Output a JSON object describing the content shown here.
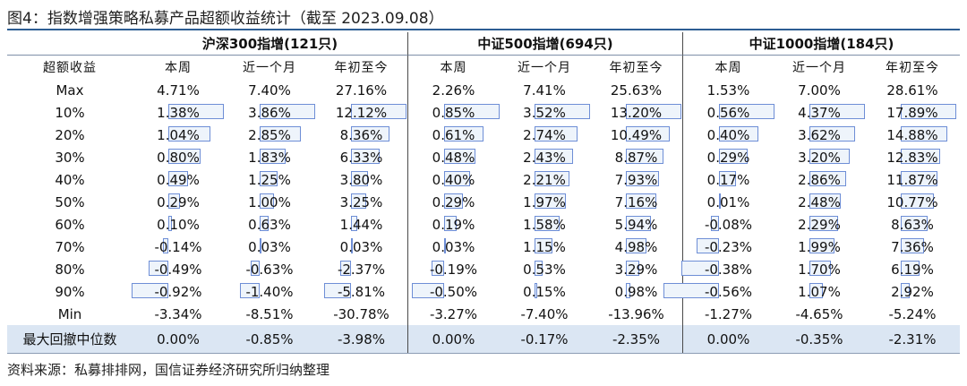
{
  "title": "图4：指数增强策略私募产品超额收益统计（截至 2023.09.08）",
  "groups": [
    {
      "label": "沪深300指增(121只)"
    },
    {
      "label": "中证500指增(694只)"
    },
    {
      "label": "中证1000指增(184只)"
    }
  ],
  "row_header": "超额收益",
  "periods": [
    "本周",
    "近一个月",
    "年初至今"
  ],
  "bar_color": "#6e8ed6",
  "rows": [
    {
      "label": "Max",
      "values": [
        "4.71%",
        "7.40%",
        "27.16%",
        "2.26%",
        "7.41%",
        "25.63%",
        "1.53%",
        "7.00%",
        "28.61%"
      ]
    },
    {
      "label": "10%",
      "values": [
        "1.38%",
        "3.86%",
        "12.12%",
        "0.85%",
        "3.52%",
        "13.20%",
        "0.56%",
        "4.37%",
        "17.89%"
      ]
    },
    {
      "label": "20%",
      "values": [
        "1.04%",
        "2.85%",
        "8.36%",
        "0.61%",
        "2.74%",
        "10.49%",
        "0.40%",
        "3.62%",
        "14.88%"
      ]
    },
    {
      "label": "30%",
      "values": [
        "0.80%",
        "1.83%",
        "6.33%",
        "0.48%",
        "2.43%",
        "8.87%",
        "0.29%",
        "3.20%",
        "12.83%"
      ]
    },
    {
      "label": "40%",
      "values": [
        "0.49%",
        "1.25%",
        "3.80%",
        "0.40%",
        "2.21%",
        "7.93%",
        "0.17%",
        "2.86%",
        "11.87%"
      ]
    },
    {
      "label": "50%",
      "values": [
        "0.29%",
        "1.00%",
        "3.25%",
        "0.29%",
        "1.97%",
        "7.16%",
        "0.01%",
        "2.48%",
        "10.77%"
      ]
    },
    {
      "label": "60%",
      "values": [
        "0.10%",
        "0.63%",
        "1.44%",
        "0.19%",
        "1.58%",
        "5.94%",
        "-0.08%",
        "2.29%",
        "8.63%"
      ]
    },
    {
      "label": "70%",
      "values": [
        "-0.14%",
        "0.03%",
        "0.03%",
        "0.03%",
        "1.15%",
        "4.98%",
        "-0.23%",
        "1.99%",
        "7.36%"
      ]
    },
    {
      "label": "80%",
      "values": [
        "-0.49%",
        "-0.63%",
        "-2.37%",
        "-0.19%",
        "0.53%",
        "3.29%",
        "-0.38%",
        "1.70%",
        "6.19%"
      ]
    },
    {
      "label": "90%",
      "values": [
        "-0.92%",
        "-1.40%",
        "-5.81%",
        "-0.50%",
        "0.15%",
        "0.98%",
        "-0.56%",
        "1.07%",
        "2.92%"
      ]
    },
    {
      "label": "Min",
      "values": [
        "-3.34%",
        "-8.51%",
        "-30.78%",
        "-3.27%",
        "-7.40%",
        "-13.96%",
        "-1.27%",
        "-4.65%",
        "-5.24%"
      ]
    },
    {
      "label": "最大回撤中位数",
      "values": [
        "0.00%",
        "-0.85%",
        "-3.98%",
        "0.00%",
        "-0.17%",
        "-2.35%",
        "0.00%",
        "-0.35%",
        "-2.31%"
      ]
    }
  ],
  "source": "资料来源：私募排排网，国信证券经济研究所归纳整理"
}
